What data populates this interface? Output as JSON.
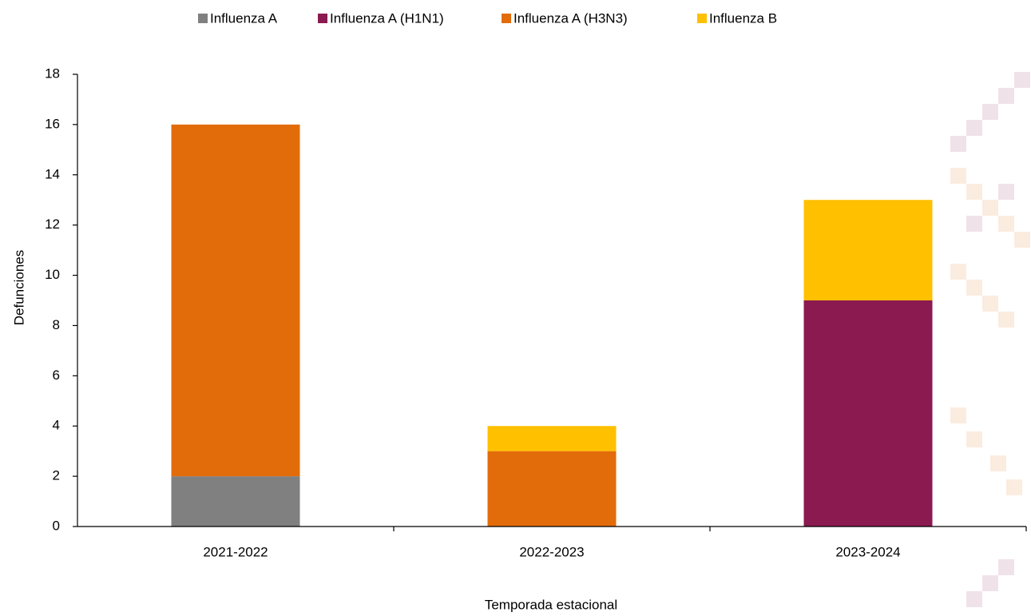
{
  "chart_data": {
    "type": "stacked_bar",
    "categories": [
      "2021-2022",
      "2022-2023",
      "2023-2024"
    ],
    "series": [
      {
        "name": "Influenza A",
        "color": "#808080",
        "values": [
          2,
          0,
          0
        ]
      },
      {
        "name": "Influenza A (H1N1)",
        "color": "#8b1a50",
        "values": [
          0,
          0,
          9
        ]
      },
      {
        "name": "Influenza A (H3N3)",
        "color": "#e36c0a",
        "values": [
          14,
          3,
          0
        ]
      },
      {
        "name": "Influenza B",
        "color": "#ffc000",
        "values": [
          0,
          1,
          4
        ]
      }
    ],
    "ylim": [
      0,
      18
    ],
    "yticks": [
      0,
      2,
      4,
      6,
      8,
      10,
      12,
      14,
      16,
      18
    ],
    "x_label": "Temporada estacional",
    "y_label": "Defunciones",
    "legend": "top"
  }
}
